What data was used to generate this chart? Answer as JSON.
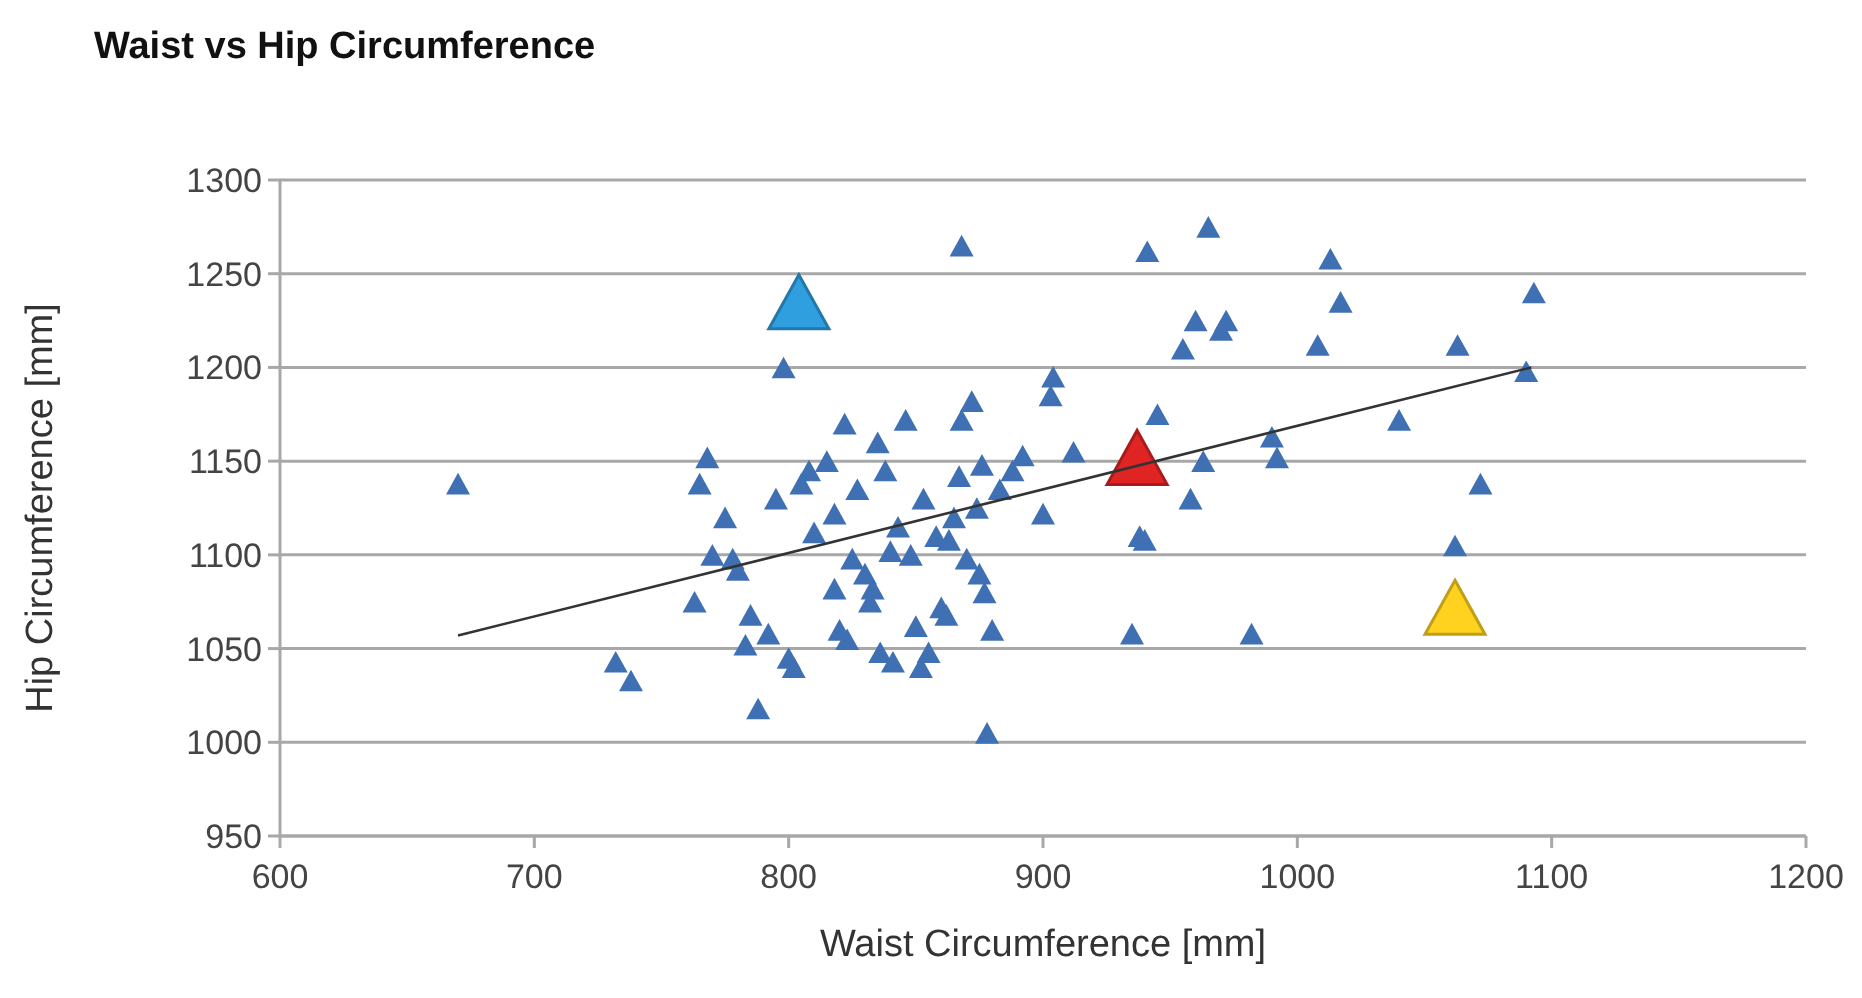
{
  "chart_data": {
    "type": "scatter",
    "title": "Waist vs Hip Circumference",
    "xlabel": "Waist Circumference [mm]",
    "ylabel": "Hip Circumference [mm]",
    "xlim": [
      600,
      1200
    ],
    "xticks": [
      600,
      700,
      800,
      900,
      1000,
      1100,
      1200
    ],
    "ylim": [
      950,
      1300
    ],
    "yticks": [
      950,
      1000,
      1050,
      1100,
      1150,
      1200,
      1250,
      1300
    ],
    "grid": "y",
    "marker": "triangle",
    "series": [
      {
        "color": "#3f70b3",
        "x": [
          670,
          732,
          738,
          763,
          765,
          768,
          770,
          775,
          778,
          780,
          783,
          785,
          788,
          792,
          795,
          798,
          800,
          802,
          805,
          808,
          810,
          815,
          818,
          818,
          820,
          822,
          823,
          825,
          827,
          830,
          832,
          833,
          835,
          836,
          838,
          840,
          841,
          843,
          846,
          848,
          850,
          852,
          853,
          855,
          858,
          860,
          862,
          863,
          865,
          867,
          868,
          868,
          870,
          872,
          874,
          875,
          876,
          877,
          878,
          880,
          883,
          888,
          892,
          900,
          903,
          904,
          912,
          935,
          938,
          940,
          941,
          945,
          955,
          958,
          960,
          963,
          965,
          970,
          972,
          982,
          990,
          992,
          1008,
          1013,
          1017,
          1040,
          1062,
          1063,
          1072,
          1090,
          1093
        ],
        "values": [
          1138,
          1043,
          1033,
          1075,
          1138,
          1152,
          1100,
          1120,
          1098,
          1092,
          1052,
          1068,
          1018,
          1058,
          1130,
          1200,
          1045,
          1040,
          1138,
          1145,
          1112,
          1150,
          1122,
          1082,
          1060,
          1170,
          1055,
          1098,
          1135,
          1090,
          1075,
          1082,
          1160,
          1048,
          1145,
          1102,
          1043,
          1115,
          1172,
          1100,
          1062,
          1040,
          1130,
          1048,
          1110,
          1072,
          1068,
          1108,
          1120,
          1142,
          1172,
          1265,
          1098,
          1182,
          1125,
          1090,
          1148,
          1080,
          1005,
          1060,
          1135,
          1145,
          1153,
          1122,
          1185,
          1195,
          1155,
          1058,
          1110,
          1108,
          1262,
          1175,
          1210,
          1130,
          1225,
          1150,
          1275,
          1220,
          1225,
          1058,
          1163,
          1152,
          1212,
          1258,
          1235,
          1172,
          1105,
          1212,
          1138,
          1198,
          1240
        ]
      },
      {
        "color": "#2f9fe0",
        "x": [
          804
        ],
        "values": [
          1235
        ]
      },
      {
        "color": "#e02424",
        "x": [
          937
        ],
        "values": [
          1152
        ]
      },
      {
        "color": "#ffd21f",
        "x": [
          1062
        ],
        "values": [
          1072
        ]
      },
      {
        "type": "line",
        "color": "#333333",
        "marker": "none",
        "x": [
          670,
          1092
        ],
        "values": [
          1057,
          1200
        ]
      }
    ]
  }
}
